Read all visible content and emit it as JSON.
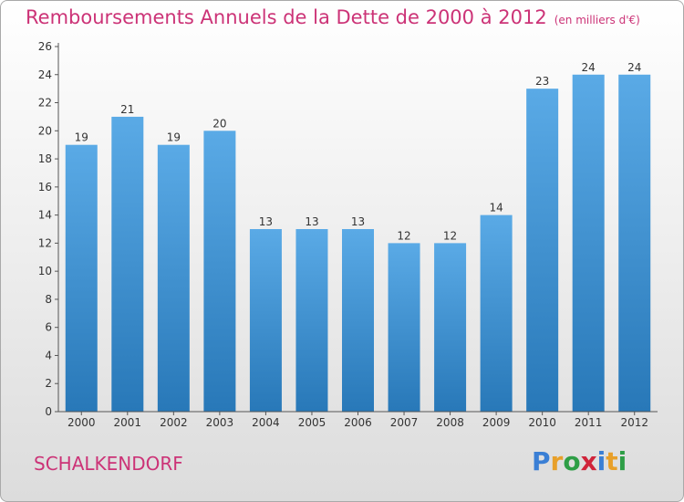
{
  "header": {
    "title": "Remboursements Annuels de la Dette de 2000 à 2012",
    "subtitle": "(en milliers d'€)"
  },
  "footer": {
    "commune": "SCHALKENDORF",
    "logo": {
      "letters": [
        "P",
        "r",
        "o",
        "x",
        "i",
        "t",
        "i"
      ],
      "colors": [
        "#3a7fd5",
        "#e8a02a",
        "#2e9e46",
        "#d0243a",
        "#3a7fd5",
        "#e8a02a",
        "#2e9e46"
      ]
    }
  },
  "chart_data": {
    "type": "bar",
    "title": "Remboursements Annuels de la Dette de 2000 à 2012",
    "subtitle": "(en milliers d'€)",
    "categories": [
      "2000",
      "2001",
      "2002",
      "2003",
      "2004",
      "2005",
      "2006",
      "2007",
      "2008",
      "2009",
      "2010",
      "2011",
      "2012"
    ],
    "values": [
      19,
      21,
      19,
      20,
      13,
      13,
      13,
      12,
      12,
      14,
      23,
      24,
      24
    ],
    "ylim": [
      0,
      26
    ],
    "yticks": [
      0,
      2,
      4,
      6,
      8,
      10,
      12,
      14,
      16,
      18,
      20,
      22,
      24,
      26
    ],
    "grid": false,
    "colors": {
      "bar_top": "#5aaae6",
      "bar_bottom": "#2878b8",
      "axis": "#555555",
      "text": "#333333",
      "title": "#cc3377"
    }
  }
}
